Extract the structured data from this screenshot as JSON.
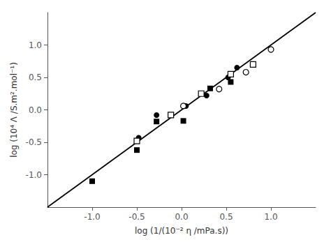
{
  "chart_data": {
    "type": "scatter",
    "xlabel": "log (1/(10⁻² η /mPa.s))",
    "ylabel": "log (10⁴ Λ /S.m².mol⁻¹)",
    "xlim": [
      -1.5,
      1.5
    ],
    "ylim": [
      -1.5,
      1.5
    ],
    "xticks": [
      {
        "value": -1.0,
        "label": "-1.0"
      },
      {
        "value": -0.5,
        "label": "-0.5"
      },
      {
        "value": 0.0,
        "label": "0.0"
      },
      {
        "value": 0.5,
        "label": "0.5"
      },
      {
        "value": 1.0,
        "label": "1.0"
      }
    ],
    "yticks": [
      {
        "value": -1.0,
        "label": "-1.0"
      },
      {
        "value": -0.5,
        "label": "-0.5"
      },
      {
        "value": 0.0,
        "label": "0.0"
      },
      {
        "value": 0.5,
        "label": "0.5"
      },
      {
        "value": 1.0,
        "label": "1.0"
      }
    ],
    "grid": false,
    "series": [
      {
        "type": "line",
        "color": "#000000",
        "x": [
          -1.5,
          1.5
        ],
        "values": [
          -1.5,
          1.5
        ]
      },
      {
        "type": "scatter",
        "marker": "square",
        "color": "#000000",
        "x": [
          -1.0,
          -0.5,
          -0.28,
          0.02,
          0.32,
          0.55
        ],
        "values": [
          -1.1,
          -0.62,
          -0.18,
          -0.17,
          0.33,
          0.43
        ]
      },
      {
        "type": "scatter",
        "marker": "circle",
        "color": "#000000",
        "x": [
          -0.48,
          -0.28,
          0.05,
          0.28,
          0.52,
          0.62
        ],
        "values": [
          -0.43,
          -0.08,
          0.06,
          0.22,
          0.5,
          0.65
        ]
      },
      {
        "type": "scatter",
        "marker": "open-square",
        "color": "#000000",
        "x": [
          -0.5,
          -0.12,
          0.22,
          0.55,
          0.8
        ],
        "values": [
          -0.48,
          -0.08,
          0.25,
          0.55,
          0.7
        ]
      },
      {
        "type": "scatter",
        "marker": "open-circle",
        "color": "#000000",
        "x": [
          0.02,
          0.42,
          0.72,
          1.0
        ],
        "values": [
          0.06,
          0.32,
          0.58,
          0.93
        ]
      }
    ]
  }
}
